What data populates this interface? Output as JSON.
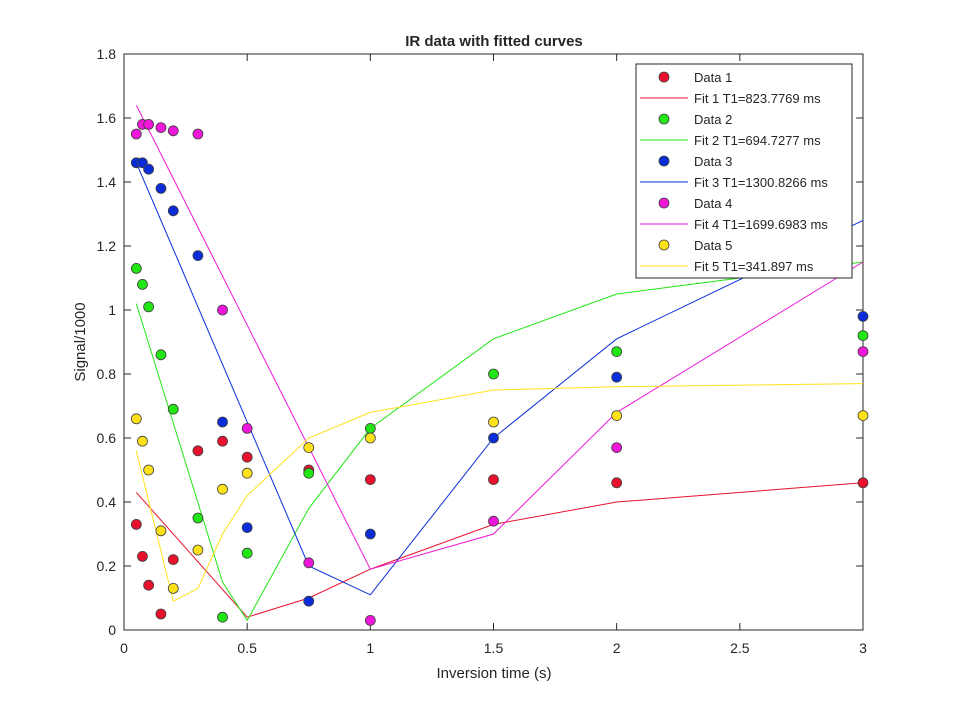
{
  "chart_data": {
    "type": "scatter",
    "title": "IR data with fitted curves",
    "xlabel": "Inversion time (s)",
    "ylabel": "Signal/1000",
    "xlim": [
      0,
      3
    ],
    "ylim": [
      0,
      1.8
    ],
    "xticks": [
      0,
      0.5,
      1,
      1.5,
      2,
      2.5,
      3
    ],
    "yticks": [
      0,
      0.2,
      0.4,
      0.6,
      0.8,
      1,
      1.2,
      1.4,
      1.6,
      1.8
    ],
    "xtick_labels": [
      "0",
      "0.5",
      "1",
      "1.5",
      "2",
      "2.5",
      "3"
    ],
    "ytick_labels": [
      "0",
      "0.2",
      "0.4",
      "0.6",
      "0.8",
      "1",
      "1.2",
      "1.4",
      "1.6",
      "1.8"
    ],
    "grid": false,
    "legend_position": "top-right",
    "x": [
      0.05,
      0.075,
      0.1,
      0.15,
      0.2,
      0.3,
      0.4,
      0.5,
      0.75,
      1,
      1.5,
      2,
      3
    ],
    "series": [
      {
        "name": "Data 1",
        "kind": "points",
        "color": "#e8112d",
        "values": [
          0.33,
          0.23,
          0.14,
          0.05,
          0.22,
          0.56,
          0.59,
          0.54,
          0.5,
          0.47,
          0.47,
          0.46,
          0.46
        ]
      },
      {
        "name": "Fit 1 T1=823.7769 ms",
        "kind": "line",
        "color": "#e8112d",
        "x": [
          0.05,
          0.5,
          0.75,
          1,
          1.5,
          2,
          3
        ],
        "values": [
          0.43,
          0.04,
          0.1,
          0.19,
          0.33,
          0.4,
          0.46
        ]
      },
      {
        "name": "Data 2",
        "kind": "points",
        "color": "#22e614",
        "values": [
          1.13,
          1.08,
          1.01,
          0.86,
          0.69,
          0.35,
          0.04,
          0.24,
          0.49,
          0.63,
          0.8,
          0.87,
          0.92
        ]
      },
      {
        "name": "Fit 2 T1=694.7277 ms",
        "kind": "line",
        "color": "#22e614",
        "x": [
          0.05,
          0.4,
          0.5,
          0.75,
          1,
          1.5,
          2,
          3
        ],
        "values": [
          1.02,
          0.15,
          0.03,
          0.38,
          0.63,
          0.91,
          1.05,
          1.15
        ]
      },
      {
        "name": "Data 3",
        "kind": "points",
        "color": "#0a2dd9",
        "values": [
          1.46,
          1.46,
          1.44,
          1.38,
          1.31,
          1.17,
          0.65,
          0.32,
          0.09,
          0.3,
          0.6,
          0.79,
          0.98
        ]
      },
      {
        "name": "Fit 3 T1=1300.8266 ms",
        "kind": "line",
        "color": "#0a2dd9",
        "x": [
          0.05,
          0.75,
          1,
          1.5,
          2,
          3
        ],
        "values": [
          1.46,
          0.2,
          0.11,
          0.6,
          0.91,
          1.28
        ]
      },
      {
        "name": "Data 4",
        "kind": "points",
        "color": "#ee16d8",
        "values": [
          1.55,
          1.58,
          1.58,
          1.57,
          1.56,
          1.55,
          1.0,
          0.63,
          0.21,
          0.03,
          0.34,
          0.57,
          0.87
        ]
      },
      {
        "name": "Fit 4 T1=1699.6983 ms",
        "kind": "line",
        "color": "#ee16d8",
        "x": [
          0.05,
          1,
          1.5,
          2,
          3
        ],
        "values": [
          1.64,
          0.19,
          0.3,
          0.68,
          1.15
        ]
      },
      {
        "name": "Data 5",
        "kind": "points",
        "color": "#ffe119",
        "values": [
          0.66,
          0.59,
          0.5,
          0.31,
          0.13,
          0.25,
          0.44,
          0.49,
          0.57,
          0.6,
          0.65,
          0.67,
          0.67
        ]
      },
      {
        "name": "Fit 5 T1=341.897 ms",
        "kind": "line",
        "color": "#ffe119",
        "x": [
          0.05,
          0.2,
          0.3,
          0.4,
          0.5,
          0.75,
          1,
          1.5,
          2,
          3
        ],
        "values": [
          0.56,
          0.09,
          0.13,
          0.3,
          0.42,
          0.6,
          0.68,
          0.75,
          0.76,
          0.77
        ]
      }
    ]
  }
}
